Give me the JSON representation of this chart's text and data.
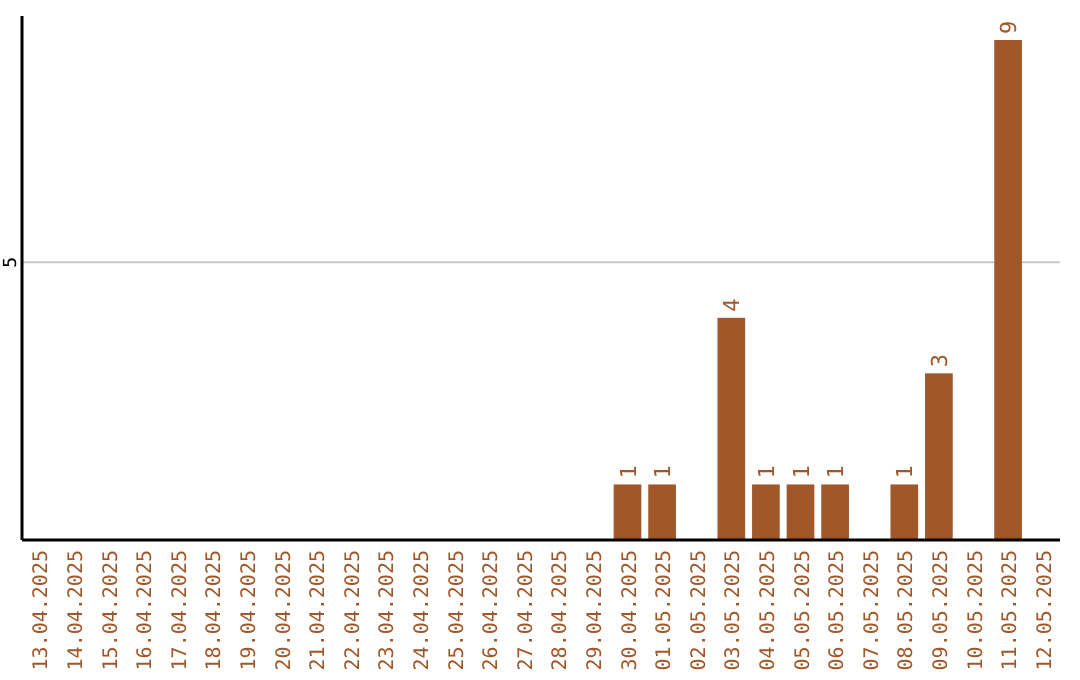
{
  "chart_data": {
    "type": "bar",
    "categories": [
      "13.04.2025",
      "14.04.2025",
      "15.04.2025",
      "16.04.2025",
      "17.04.2025",
      "18.04.2025",
      "19.04.2025",
      "20.04.2025",
      "21.04.2025",
      "22.04.2025",
      "23.04.2025",
      "24.04.2025",
      "25.04.2025",
      "26.04.2025",
      "27.04.2025",
      "28.04.2025",
      "29.04.2025",
      "30.04.2025",
      "01.05.2025",
      "02.05.2025",
      "03.05.2025",
      "04.05.2025",
      "05.05.2025",
      "06.05.2025",
      "07.05.2025",
      "08.05.2025",
      "09.05.2025",
      "10.05.2025",
      "11.05.2025",
      "12.05.2025"
    ],
    "values": [
      null,
      null,
      null,
      null,
      null,
      null,
      null,
      null,
      null,
      null,
      null,
      null,
      null,
      null,
      null,
      null,
      null,
      1,
      1,
      null,
      4,
      1,
      1,
      1,
      null,
      1,
      3,
      null,
      9,
      null
    ],
    "data_labels": true,
    "color": "#a0582a",
    "ref_lines": [
      {
        "axis": "y",
        "value": 5,
        "label": "5",
        "color": "#c8c8c8"
      }
    ]
  }
}
